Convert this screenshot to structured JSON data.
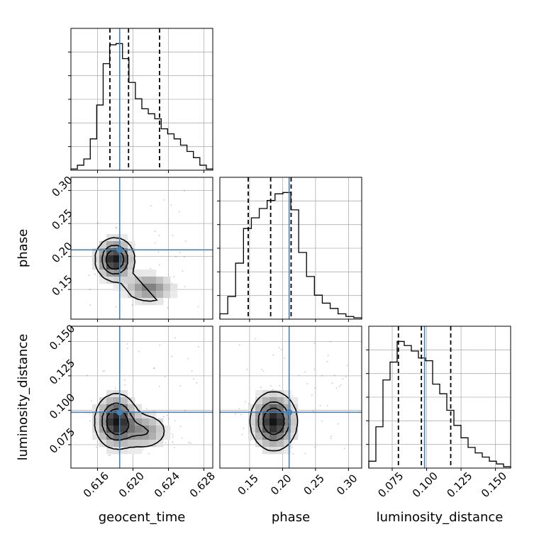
{
  "chart_data": {
    "type": "corner",
    "parameters": [
      "geocent_time",
      "phase",
      "luminosity_distance"
    ],
    "axis_labels": {
      "geocent_time": "geocent_time",
      "phase": "phase",
      "luminosity_distance": "luminosity_distance"
    },
    "ranges": {
      "geocent_time": [
        0.613,
        0.629
      ],
      "phase": [
        0.105,
        0.32
      ],
      "luminosity_distance": [
        0.058,
        0.161
      ]
    },
    "ticks": {
      "geocent_time": [
        {
          "value": 0.616,
          "label": "0.616"
        },
        {
          "value": 0.62,
          "label": "0.620"
        },
        {
          "value": 0.624,
          "label": "0.624"
        },
        {
          "value": 0.628,
          "label": "0.628"
        }
      ],
      "phase": [
        {
          "value": 0.15,
          "label": "0.15"
        },
        {
          "value": 0.2,
          "label": "0.20"
        },
        {
          "value": 0.25,
          "label": "0.25"
        },
        {
          "value": 0.3,
          "label": "0.30"
        }
      ],
      "luminosity_distance": [
        {
          "value": 0.075,
          "label": "0.075"
        },
        {
          "value": 0.1,
          "label": "0.100"
        },
        {
          "value": 0.125,
          "label": "0.125"
        },
        {
          "value": 0.15,
          "label": "0.150"
        }
      ]
    },
    "truths": {
      "geocent_time": 0.6185,
      "phase": 0.21,
      "luminosity_distance": 0.0985
    },
    "quantiles": {
      "geocent_time": [
        0.6174,
        0.6195,
        0.623
      ],
      "phase": [
        0.148,
        0.182,
        0.213
      ],
      "luminosity_distance": [
        0.0795,
        0.0962,
        0.1175
      ]
    },
    "histograms": {
      "geocent_time": [
        1,
        4,
        9,
        25,
        52,
        85,
        100,
        101,
        89,
        70,
        57,
        49,
        45,
        41,
        33,
        29,
        25,
        20,
        15,
        10,
        4,
        1
      ],
      "phase": [
        4,
        17,
        42,
        68,
        76,
        83,
        89,
        94,
        95,
        82,
        50,
        32,
        18,
        12,
        8,
        4,
        2,
        1
      ],
      "luminosity_distance": [
        5,
        30,
        64,
        77,
        92,
        89,
        85,
        80,
        78,
        61,
        54,
        42,
        31,
        22,
        15,
        11,
        8,
        5,
        3,
        1
      ]
    },
    "grid": true,
    "truth_color": "#4682b4",
    "line_color": "#000000",
    "density_color": "#000000"
  }
}
